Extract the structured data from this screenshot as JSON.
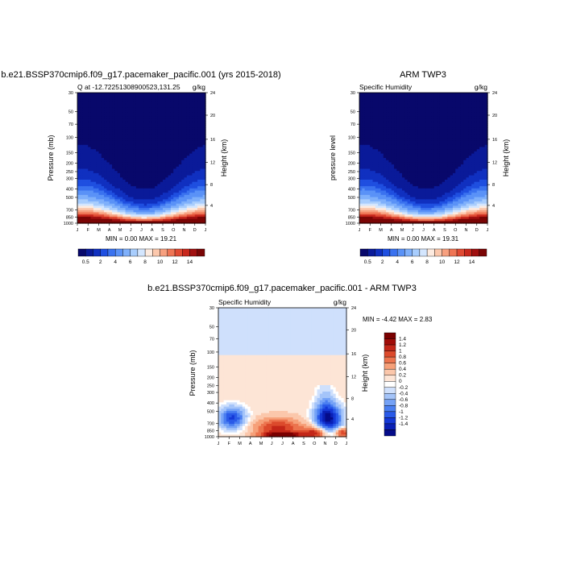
{
  "chart_data": [
    {
      "type": "heatmap",
      "title": "b.e21.BSSP370cmip6.f09_g17.pacemaker_pacific.001 (yrs 2015-2018)",
      "left_label": "Q at -12.72251308900523,131.25",
      "right_label": "g/kg",
      "ylabel": "Pressure (mb)",
      "ylabel_right": "Height (km)",
      "months": [
        "J",
        "F",
        "M",
        "A",
        "M",
        "J",
        "J",
        "A",
        "S",
        "O",
        "N",
        "D",
        "J"
      ],
      "pressure_ticks": [
        "30",
        "50",
        "70",
        "100",
        "150",
        "200",
        "250",
        "300",
        "400",
        "500",
        "700",
        "850",
        "1000"
      ],
      "pressure_values": [
        30,
        50,
        70,
        100,
        150,
        200,
        250,
        300,
        400,
        500,
        700,
        850,
        1000
      ],
      "height_ticks": [
        "24",
        "20",
        "16",
        "12",
        "8",
        "4"
      ],
      "stats": "MIN =   0.00 MAX =  19.21",
      "colorbar_labels": [
        "0.5",
        "2",
        "4",
        "6",
        "8",
        "10",
        "12",
        "14"
      ],
      "zrange": [
        0,
        19.21
      ]
    },
    {
      "type": "heatmap",
      "title": "ARM TWP3",
      "left_label": "Specific Humidity",
      "right_label": "g/kg",
      "ylabel": "pressure level",
      "ylabel_right": "Height (km)",
      "months": [
        "J",
        "F",
        "M",
        "A",
        "M",
        "J",
        "J",
        "A",
        "S",
        "O",
        "N",
        "D",
        "J"
      ],
      "pressure_ticks": [
        "30",
        "50",
        "70",
        "100",
        "150",
        "200",
        "250",
        "300",
        "400",
        "500",
        "700",
        "850",
        "1000"
      ],
      "pressure_values": [
        30,
        50,
        70,
        100,
        150,
        200,
        250,
        300,
        400,
        500,
        700,
        850,
        1000
      ],
      "height_ticks": [
        "24",
        "20",
        "16",
        "12",
        "8",
        "4"
      ],
      "stats": "MIN =   0.00 MAX =  19.31",
      "colorbar_labels": [
        "0.5",
        "2",
        "4",
        "6",
        "8",
        "10",
        "12",
        "14"
      ],
      "zrange": [
        0,
        19.31
      ]
    },
    {
      "type": "heatmap",
      "title": "b.e21.BSSP370cmip6.f09_g17.pacemaker_pacific.001 - ARM TWP3",
      "left_label": "Specific Humidity",
      "right_label": "g/kg",
      "ylabel": "Pressure (mb)",
      "ylabel_right": "Height (km)",
      "months": [
        "J",
        "F",
        "M",
        "A",
        "M",
        "J",
        "J",
        "A",
        "S",
        "O",
        "N",
        "D",
        "J"
      ],
      "pressure_ticks": [
        "30",
        "50",
        "70",
        "100",
        "150",
        "200",
        "250",
        "300",
        "400",
        "500",
        "700",
        "850",
        "1000"
      ],
      "pressure_values": [
        30,
        50,
        70,
        100,
        150,
        200,
        250,
        300,
        400,
        500,
        700,
        850,
        1000
      ],
      "height_ticks": [
        "24",
        "20",
        "16",
        "12",
        "8",
        "4"
      ],
      "stats": "MIN =  -4.42 MAX =   2.83",
      "colorbar_labels": [
        "1.4",
        "1.2",
        "1",
        "0.8",
        "0.6",
        "0.4",
        "0.2",
        "0",
        "-0.2",
        "-0.4",
        "-0.6",
        "-0.8",
        "-1",
        "-1.2",
        "-1.4"
      ],
      "zrange": [
        -4.42,
        2.83
      ]
    }
  ],
  "colors": {
    "humidity_scale": [
      "#08086b",
      "#0a1a99",
      "#1030c0",
      "#1f4fe0",
      "#3a72ef",
      "#5a92f7",
      "#7fb0fb",
      "#a8cdfd",
      "#d4e6fe",
      "#fdebe0",
      "#fcc8ad",
      "#f7a07f",
      "#ef7555",
      "#e04a33",
      "#c8281d",
      "#a11010",
      "#7a0505"
    ],
    "diff_scale": [
      "#050c8a",
      "#0a20b5",
      "#1438d6",
      "#2a5ae8",
      "#4a7ff1",
      "#75a2f6",
      "#a4c4f9",
      "#cfe0fc",
      "#ffffff",
      "#fde5d6",
      "#fbc7ab",
      "#f6a079",
      "#ec744e",
      "#dc4a2c",
      "#c32618",
      "#a00c08",
      "#7a0000"
    ]
  }
}
